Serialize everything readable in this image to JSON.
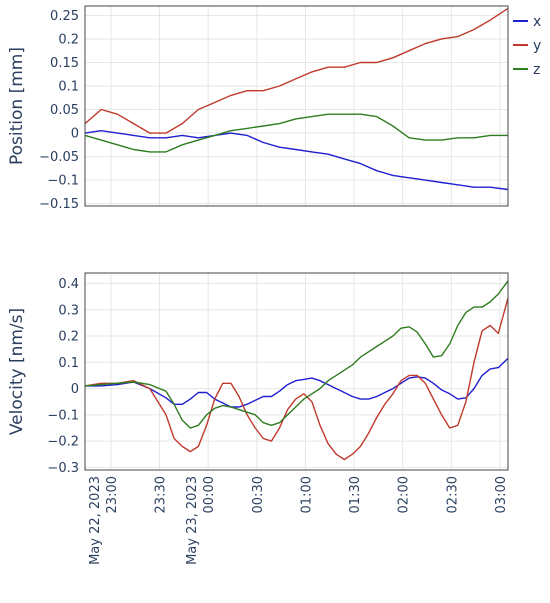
{
  "colors": {
    "x": "#1f1fcf",
    "y": "#c0392b",
    "z": "#2e7d1f"
  },
  "x_axis": {
    "start_minutes": 0,
    "end_minutes": 261,
    "ticks": [
      {
        "m": 16,
        "label": "23:00",
        "sub": "May 22, 2023"
      },
      {
        "m": 46,
        "label": "23:30"
      },
      {
        "m": 76,
        "label": "00:00",
        "sub": "May 23, 2023"
      },
      {
        "m": 106,
        "label": "00:30"
      },
      {
        "m": 136,
        "label": "01:00"
      },
      {
        "m": 166,
        "label": "01:30"
      },
      {
        "m": 196,
        "label": "02:00"
      },
      {
        "m": 226,
        "label": "02:30"
      },
      {
        "m": 256,
        "label": "03:00"
      }
    ]
  },
  "legend": [
    "x",
    "y",
    "z"
  ],
  "chart_data": [
    {
      "type": "line",
      "ylabel": "Position [mm]",
      "ylim": [
        -0.155,
        0.27
      ],
      "yticks": [
        {
          "v": 0.25,
          "label": "0.25"
        },
        {
          "v": 0.2,
          "label": "0.2"
        },
        {
          "v": 0.15,
          "label": "0.15"
        },
        {
          "v": 0.1,
          "label": "0.1"
        },
        {
          "v": 0.05,
          "label": "0.05"
        },
        {
          "v": 0,
          "label": "0"
        },
        {
          "v": -0.05,
          "label": "−0.05"
        },
        {
          "v": -0.1,
          "label": "−0.1"
        },
        {
          "v": -0.15,
          "label": "−0.15"
        }
      ],
      "grid": true,
      "legend_position": "top-right",
      "series": [
        {
          "name": "x",
          "points": [
            [
              0,
              0.0
            ],
            [
              10,
              0.005
            ],
            [
              20,
              0.0
            ],
            [
              30,
              -0.005
            ],
            [
              40,
              -0.01
            ],
            [
              50,
              -0.01
            ],
            [
              60,
              -0.005
            ],
            [
              70,
              -0.01
            ],
            [
              80,
              -0.005
            ],
            [
              90,
              -0.0
            ],
            [
              100,
              -0.005
            ],
            [
              110,
              -0.02
            ],
            [
              120,
              -0.03
            ],
            [
              130,
              -0.035
            ],
            [
              140,
              -0.04
            ],
            [
              150,
              -0.045
            ],
            [
              160,
              -0.055
            ],
            [
              170,
              -0.065
            ],
            [
              180,
              -0.08
            ],
            [
              190,
              -0.09
            ],
            [
              200,
              -0.095
            ],
            [
              210,
              -0.1
            ],
            [
              220,
              -0.105
            ],
            [
              230,
              -0.11
            ],
            [
              240,
              -0.115
            ],
            [
              250,
              -0.115
            ],
            [
              261,
              -0.12
            ]
          ]
        },
        {
          "name": "y",
          "points": [
            [
              0,
              0.02
            ],
            [
              10,
              0.05
            ],
            [
              20,
              0.04
            ],
            [
              30,
              0.02
            ],
            [
              40,
              0.0
            ],
            [
              50,
              0.0
            ],
            [
              60,
              0.02
            ],
            [
              70,
              0.05
            ],
            [
              80,
              0.065
            ],
            [
              90,
              0.08
            ],
            [
              100,
              0.09
            ],
            [
              110,
              0.09
            ],
            [
              120,
              0.1
            ],
            [
              130,
              0.115
            ],
            [
              140,
              0.13
            ],
            [
              150,
              0.14
            ],
            [
              160,
              0.14
            ],
            [
              170,
              0.15
            ],
            [
              180,
              0.15
            ],
            [
              190,
              0.16
            ],
            [
              200,
              0.175
            ],
            [
              210,
              0.19
            ],
            [
              220,
              0.2
            ],
            [
              230,
              0.205
            ],
            [
              240,
              0.22
            ],
            [
              250,
              0.24
            ],
            [
              261,
              0.265
            ]
          ]
        },
        {
          "name": "z",
          "points": [
            [
              0,
              -0.005
            ],
            [
              10,
              -0.015
            ],
            [
              20,
              -0.025
            ],
            [
              30,
              -0.035
            ],
            [
              40,
              -0.04
            ],
            [
              50,
              -0.04
            ],
            [
              60,
              -0.025
            ],
            [
              70,
              -0.015
            ],
            [
              80,
              -0.005
            ],
            [
              90,
              0.005
            ],
            [
              100,
              0.01
            ],
            [
              110,
              0.015
            ],
            [
              120,
              0.02
            ],
            [
              130,
              0.03
            ],
            [
              140,
              0.035
            ],
            [
              150,
              0.04
            ],
            [
              160,
              0.04
            ],
            [
              170,
              0.04
            ],
            [
              180,
              0.035
            ],
            [
              190,
              0.015
            ],
            [
              200,
              -0.01
            ],
            [
              210,
              -0.015
            ],
            [
              220,
              -0.015
            ],
            [
              230,
              -0.01
            ],
            [
              240,
              -0.01
            ],
            [
              250,
              -0.005
            ],
            [
              261,
              -0.005
            ]
          ]
        }
      ]
    },
    {
      "type": "line",
      "ylabel": "Velocity [nm/s]",
      "ylim": [
        -0.31,
        0.44
      ],
      "yticks": [
        {
          "v": 0.4,
          "label": "0.4"
        },
        {
          "v": 0.3,
          "label": "0.3"
        },
        {
          "v": 0.2,
          "label": "0.2"
        },
        {
          "v": 0.1,
          "label": "0.1"
        },
        {
          "v": 0,
          "label": "0"
        },
        {
          "v": -0.1,
          "label": "−0.1"
        },
        {
          "v": -0.2,
          "label": "−0.2"
        },
        {
          "v": -0.3,
          "label": "−0.3"
        }
      ],
      "grid": true,
      "series": [
        {
          "name": "x",
          "points": [
            [
              0,
              0.01
            ],
            [
              10,
              0.01
            ],
            [
              20,
              0.015
            ],
            [
              30,
              0.025
            ],
            [
              40,
              0.0
            ],
            [
              50,
              -0.035
            ],
            [
              55,
              -0.06
            ],
            [
              60,
              -0.06
            ],
            [
              65,
              -0.04
            ],
            [
              70,
              -0.015
            ],
            [
              75,
              -0.015
            ],
            [
              80,
              -0.04
            ],
            [
              85,
              -0.055
            ],
            [
              90,
              -0.07
            ],
            [
              95,
              -0.07
            ],
            [
              100,
              -0.06
            ],
            [
              105,
              -0.045
            ],
            [
              110,
              -0.03
            ],
            [
              115,
              -0.03
            ],
            [
              120,
              -0.01
            ],
            [
              125,
              0.015
            ],
            [
              130,
              0.03
            ],
            [
              135,
              0.035
            ],
            [
              140,
              0.04
            ],
            [
              145,
              0.03
            ],
            [
              150,
              0.015
            ],
            [
              155,
              0.0
            ],
            [
              160,
              -0.015
            ],
            [
              165,
              -0.03
            ],
            [
              170,
              -0.04
            ],
            [
              175,
              -0.04
            ],
            [
              180,
              -0.03
            ],
            [
              185,
              -0.015
            ],
            [
              190,
              0.0
            ],
            [
              195,
              0.02
            ],
            [
              200,
              0.04
            ],
            [
              205,
              0.045
            ],
            [
              210,
              0.04
            ],
            [
              215,
              0.02
            ],
            [
              220,
              -0.005
            ],
            [
              225,
              -0.02
            ],
            [
              230,
              -0.04
            ],
            [
              235,
              -0.035
            ],
            [
              240,
              0.0
            ],
            [
              245,
              0.05
            ],
            [
              250,
              0.075
            ],
            [
              255,
              0.08
            ],
            [
              261,
              0.115
            ]
          ]
        },
        {
          "name": "y",
          "points": [
            [
              0,
              0.01
            ],
            [
              10,
              0.02
            ],
            [
              20,
              0.02
            ],
            [
              30,
              0.03
            ],
            [
              40,
              0.0
            ],
            [
              50,
              -0.1
            ],
            [
              55,
              -0.19
            ],
            [
              60,
              -0.22
            ],
            [
              65,
              -0.24
            ],
            [
              70,
              -0.22
            ],
            [
              75,
              -0.14
            ],
            [
              80,
              -0.04
            ],
            [
              85,
              0.02
            ],
            [
              90,
              0.02
            ],
            [
              95,
              -0.03
            ],
            [
              100,
              -0.1
            ],
            [
              105,
              -0.15
            ],
            [
              110,
              -0.19
            ],
            [
              115,
              -0.2
            ],
            [
              120,
              -0.15
            ],
            [
              125,
              -0.08
            ],
            [
              130,
              -0.04
            ],
            [
              135,
              -0.02
            ],
            [
              140,
              -0.05
            ],
            [
              145,
              -0.14
            ],
            [
              150,
              -0.21
            ],
            [
              155,
              -0.25
            ],
            [
              160,
              -0.27
            ],
            [
              165,
              -0.25
            ],
            [
              170,
              -0.22
            ],
            [
              175,
              -0.17
            ],
            [
              180,
              -0.11
            ],
            [
              185,
              -0.06
            ],
            [
              190,
              -0.02
            ],
            [
              195,
              0.03
            ],
            [
              200,
              0.05
            ],
            [
              205,
              0.05
            ],
            [
              210,
              0.02
            ],
            [
              215,
              -0.04
            ],
            [
              220,
              -0.1
            ],
            [
              225,
              -0.15
            ],
            [
              230,
              -0.14
            ],
            [
              235,
              -0.05
            ],
            [
              240,
              0.1
            ],
            [
              245,
              0.22
            ],
            [
              250,
              0.24
            ],
            [
              255,
              0.21
            ],
            [
              261,
              0.345
            ]
          ]
        },
        {
          "name": "z",
          "points": [
            [
              0,
              0.01
            ],
            [
              10,
              0.015
            ],
            [
              20,
              0.02
            ],
            [
              30,
              0.025
            ],
            [
              40,
              0.015
            ],
            [
              50,
              -0.01
            ],
            [
              55,
              -0.06
            ],
            [
              60,
              -0.12
            ],
            [
              65,
              -0.15
            ],
            [
              70,
              -0.14
            ],
            [
              75,
              -0.1
            ],
            [
              80,
              -0.075
            ],
            [
              85,
              -0.065
            ],
            [
              90,
              -0.07
            ],
            [
              95,
              -0.08
            ],
            [
              100,
              -0.09
            ],
            [
              105,
              -0.1
            ],
            [
              110,
              -0.13
            ],
            [
              115,
              -0.14
            ],
            [
              120,
              -0.13
            ],
            [
              125,
              -0.1
            ],
            [
              130,
              -0.07
            ],
            [
              135,
              -0.04
            ],
            [
              140,
              -0.02
            ],
            [
              145,
              0.0
            ],
            [
              150,
              0.03
            ],
            [
              155,
              0.05
            ],
            [
              160,
              0.07
            ],
            [
              165,
              0.09
            ],
            [
              170,
              0.12
            ],
            [
              175,
              0.14
            ],
            [
              180,
              0.16
            ],
            [
              185,
              0.18
            ],
            [
              190,
              0.2
            ],
            [
              195,
              0.23
            ],
            [
              200,
              0.235
            ],
            [
              205,
              0.215
            ],
            [
              210,
              0.17
            ],
            [
              215,
              0.12
            ],
            [
              220,
              0.125
            ],
            [
              225,
              0.17
            ],
            [
              230,
              0.24
            ],
            [
              235,
              0.29
            ],
            [
              240,
              0.31
            ],
            [
              245,
              0.31
            ],
            [
              250,
              0.33
            ],
            [
              255,
              0.36
            ],
            [
              261,
              0.41
            ]
          ]
        }
      ]
    }
  ]
}
